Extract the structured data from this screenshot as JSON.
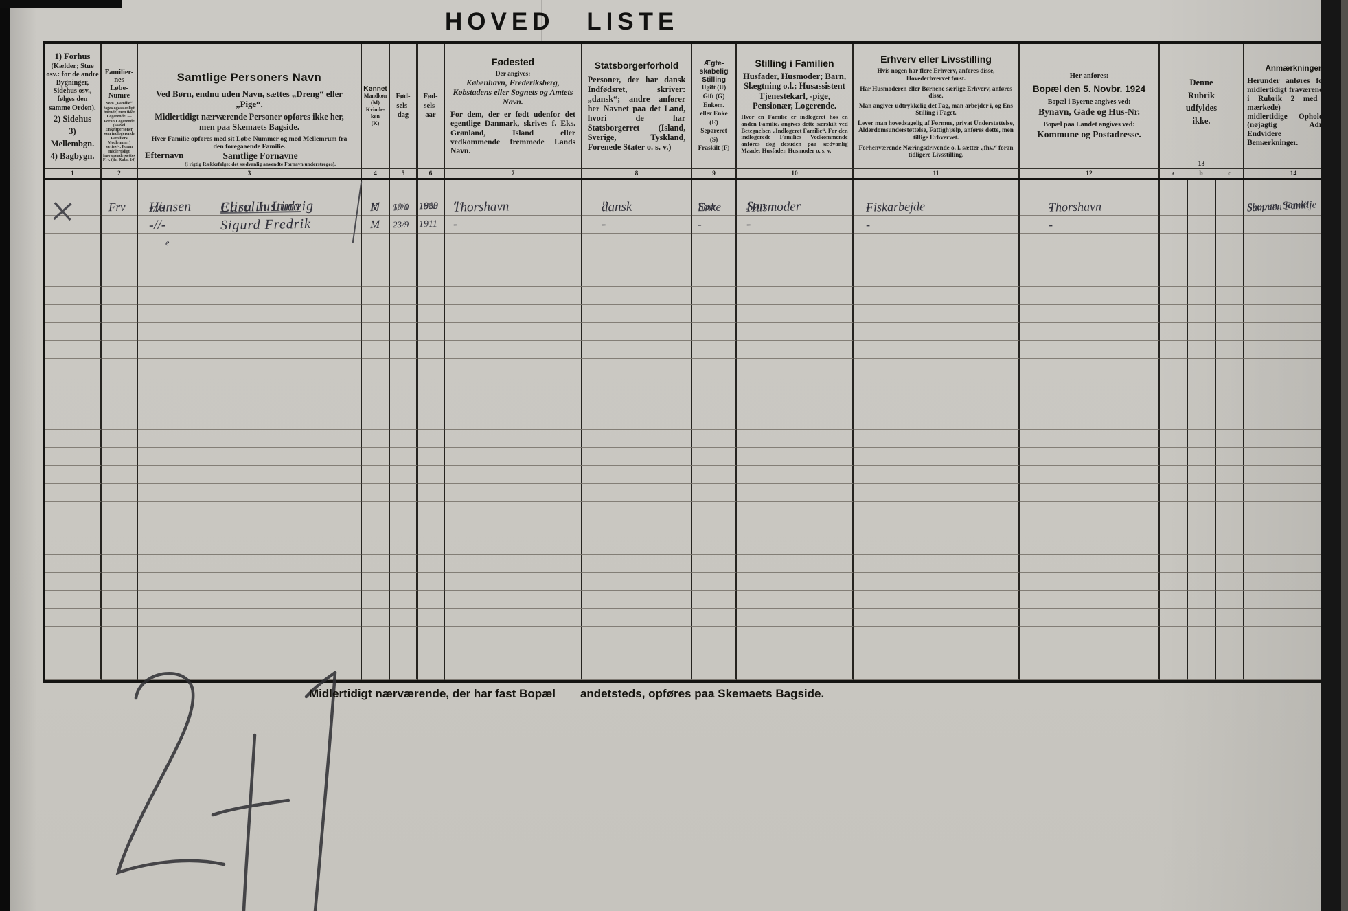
{
  "title": "HOVED LISTE",
  "colors": {
    "paper": "#c9c7c1",
    "ink": "#1d1c1a"
  },
  "table": {
    "header": {
      "c1": {
        "num": "1",
        "b1": "1) Forhus",
        "p1": "(Kælder; Stue osv.: for de andre Bygninger, Sidehus osv., følges den samme Orden).",
        "b2": "2) Sidehus",
        "b3": "3) Mellembgn.",
        "b4": "4) Bagbygn."
      },
      "c2": {
        "num": "2",
        "t1": "Familier-",
        "t2": "nes",
        "t3": "Løbe-",
        "t4": "Numre",
        "small": "Som „Familie“ tages ogsaa enligt boende, men ikke Logerende. — Foran Logerende (saavel Enkeltpersoner som indlogerende Familiers Medlemmer) sættes ×. Foran midlertidigt fraværende sættes Frv. (jfr. Rubr. 14)"
      },
      "c3": {
        "num": "3",
        "title": "Samtlige Personers Navn",
        "p1": "Ved Børn, endnu uden Navn, sættes „Dreng“ eller „Pige“.",
        "p2": "Midlertidigt nærværende Personer opføres ikke her, men paa Skemaets Bagside.",
        "p3": "Hver Familie opføres med sit Løbe-Nummer og med Mellemrum fra den foregaaende Familie.",
        "efternavn": "Efternavn",
        "fornavne": "Samtlige Fornavne",
        "fornavne_note": "(i rigtig Rækkefølge; det sædvanlig anvendte Fornavn understreges)."
      },
      "c4": {
        "num": "4",
        "title": "Kønnet",
        "l1": "Mandkøn",
        "l2": "(M)",
        "l3": "Kvinde-",
        "l4": "køn",
        "l5": "(K)"
      },
      "c5": {
        "num": "5",
        "l1": "Fød-",
        "l2": "sels-",
        "l3": "dag"
      },
      "c6": {
        "num": "6",
        "l1": "Fød-",
        "l2": "sels-",
        "l3": "aar"
      },
      "c7": {
        "num": "7",
        "title": "Fødested",
        "p1": "Der angives:",
        "p2": "København, Frederiksberg, Købstadens eller Sognets og Amtets Navn.",
        "p3": "For dem, der er født udenfor det egentlige Danmark, skrives f. Eks. Grønland, Island eller vedkommende fremmede Lands Navn."
      },
      "c8": {
        "num": "8",
        "title": "Statsborgerforhold",
        "p1": "Personer, der har dansk Indfødsret, skriver: „dansk“; andre anfører her Navnet paa det Land, hvori de har Statsborgerret (Island, Sverige, Tyskland, Forenede Stater o. s. v.)"
      },
      "c9": {
        "num": "9",
        "t1": "Ægte-",
        "t2": "skabelig",
        "t3": "Stilling",
        "l1": "Ugift (U)",
        "l2": "Gift (G)",
        "l3": "Enkem.",
        "l4": "eller Enke",
        "l5": "(E)",
        "l6": "Separeret",
        "l7": "(S)",
        "l8": "Fraskilt (F)"
      },
      "c10": {
        "num": "10",
        "title": "Stilling i Familien",
        "p1": "Husfader, Husmoder; Barn, Slægtning o.l.; Husassistent Tjenestekarl, -pige, Pensionær, Logerende.",
        "p2": "Hvor en Familie er indlogeret hos en anden Familie, angives dette særskilt ved Betegnelsen „Indlogeret Familie“. For den indlogerede Families Vedkommende anføres dog desuden paa sædvanlig Maade: Husfader, Husmoder o. s. v."
      },
      "c11": {
        "num": "11",
        "title": "Erhverv eller Livsstilling",
        "p1": "Hvis nogen har flere Erhverv, anføres disse, Hovederhvervet først.",
        "p2": "Har Husmoderen eller Børnene særlige Erhverv, anføres disse.",
        "p3": "Man angiver udtrykkelig det Fag, man arbejder i, og Ens Stilling i Faget.",
        "p4": "Lever man hovedsagelig af Formue, privat Understøttelse, Alderdomsunderstøttelse, Fattighjælp, anføres dette, men tillige Erhvervet.",
        "p5": "Forhenværende Næringsdrivende o. l. sætter „fhv.“ foran tidligere Livsstilling."
      },
      "c12": {
        "num": "12",
        "p0": "Her anføres:",
        "title": "Bopæl den 5. Novbr. 1924",
        "p1": "Bopæl i Byerne angives ved:",
        "p2": "Bynavn, Gade og Hus-Nr.",
        "p3": "Bopæl paa Landet angives ved:",
        "p4": "Kommune og Postadresse."
      },
      "c13": {
        "num": "13",
        "suba": "a",
        "subb": "b",
        "subc": "c",
        "l1": "Denne",
        "l2": "Rubrik",
        "l3": "udfyldes",
        "l4": "ikke."
      },
      "c14": {
        "num": "14",
        "title": "Anmærkninger",
        "p1": "Herunder anføres for de midlertidigt fraværende (de i Rubrik 2 med Frv. mærkede) deres midlertidige Opholdssted (nøjagtig Adresse). Endvidere andre Bemærkninger."
      }
    },
    "rows": [
      {
        "mark1": "×",
        "mark2": "Frv",
        "surname": "Hansen",
        "forenames": "Elisa Justina",
        "sex": "K",
        "bday": "5/10",
        "byear": "1883",
        "birthplace": "Thorshavn",
        "citizenship": "dansk",
        "marital": "Enke",
        "family": "Husmoder",
        "occupation": "Fiskarbejde",
        "residence": "Thorshavn",
        "remark": "Sammen Familje"
      },
      {
        "surname": "-//-",
        "forenames": "Carolin Ludvig",
        "sex": "M",
        "bday": "10/1",
        "byear": "1910",
        "birthplace": "″",
        "citizenship": "″",
        "marital": "Søn",
        "family": "Søn",
        "occupation": "-",
        "residence": "-",
        "remark": "Skopun, Sandø"
      },
      {
        "surname": "-//-",
        "forenames": "Sigurd Fredrik",
        "sex": "M",
        "bday": "23/9",
        "byear": "1911",
        "birthplace": "-",
        "citizenship": "-",
        "marital": "-",
        "family": "-",
        "occupation": "-",
        "residence": "-"
      },
      {
        "surname": "e",
        "_style": "tiny"
      },
      {},
      {},
      {},
      {},
      {},
      {},
      {},
      {},
      {},
      {},
      {},
      {},
      {},
      {},
      {},
      {},
      {},
      {},
      {},
      {},
      {},
      {},
      {},
      {}
    ]
  },
  "footer": {
    "part1": "Midlertidigt nærværende, der har fast Bopæl",
    "part2": "andetsteds, opføres paa Skemaets Bagside.",
    "tally": "2+1"
  }
}
